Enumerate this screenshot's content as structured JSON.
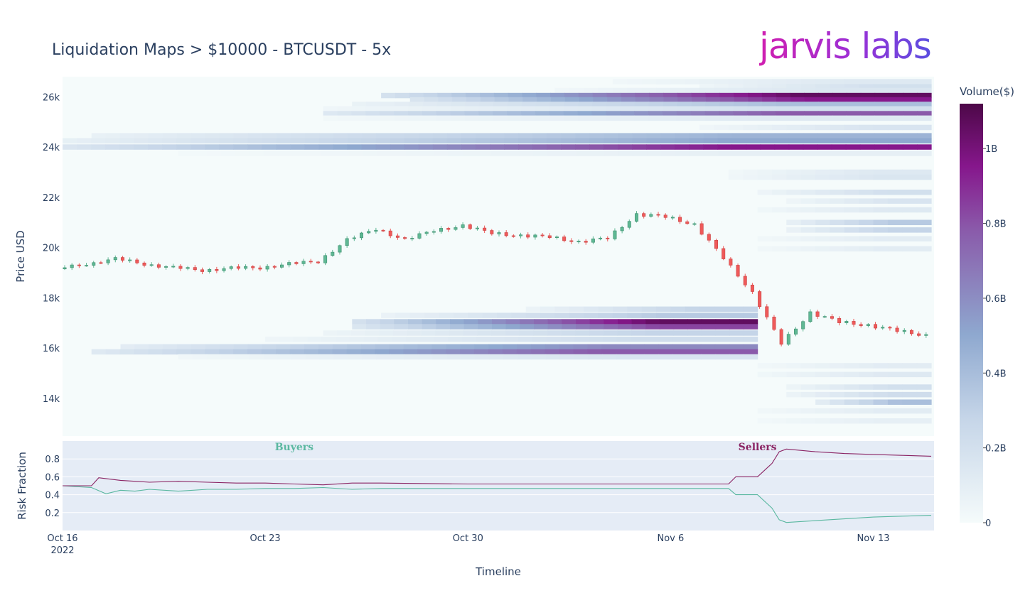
{
  "header": {
    "title": "Liquidation Maps > $10000 - BTCUSDT - 5x",
    "logo": "jarvis labs"
  },
  "colors": {
    "up": "#5fb894",
    "down": "#ef5a5a",
    "buyers": "#5ab8a0",
    "sellers": "#8a2363",
    "heat_low": "#f5fbfb",
    "heat_mid": "#8ea8cf",
    "heat_high": "#86178c",
    "heat_max": "#4d0848",
    "risk_bg": "#e5ecf6",
    "main_bg": "#f5fbfb"
  },
  "chart_data": [
    {
      "type": "heatmap",
      "title": "Liquidation Maps > $10000 - BTCUSDT - 5x",
      "ylabel": "Price USD",
      "ylim": [
        12500,
        26800
      ],
      "yticks": [
        {
          "v": 14000,
          "label": "14k"
        },
        {
          "v": 16000,
          "label": "16k"
        },
        {
          "v": 18000,
          "label": "18k"
        },
        {
          "v": 20000,
          "label": "20k"
        },
        {
          "v": 22000,
          "label": "22k"
        },
        {
          "v": 24000,
          "label": "24k"
        },
        {
          "v": 26000,
          "label": "26k"
        }
      ],
      "xlim": [
        "2022-10-16",
        "2022-11-15"
      ],
      "xticks": [
        {
          "date": "2022-10-16",
          "label": "Oct 16",
          "sub": "2022"
        },
        {
          "date": "2022-10-23",
          "label": "Oct 23",
          "sub": ""
        },
        {
          "date": "2022-10-30",
          "label": "Oct 30",
          "sub": ""
        },
        {
          "date": "2022-11-06",
          "label": "Nov 6",
          "sub": ""
        },
        {
          "date": "2022-11-13",
          "label": "Nov 13",
          "sub": ""
        }
      ],
      "colorbar": {
        "title": "Volume($)",
        "range": [
          0,
          1120000000
        ],
        "ticks": [
          {
            "v": 0,
            "label": "0"
          },
          {
            "v": 200000000,
            "label": "0.2B"
          },
          {
            "v": 400000000,
            "label": "0.4B"
          },
          {
            "v": 600000000,
            "label": "0.6B"
          },
          {
            "v": 800000000,
            "label": "0.8B"
          },
          {
            "v": 1000000000,
            "label": "1B"
          }
        ]
      },
      "liquidation_bands": [
        {
          "price": 26600,
          "start": "2022-11-04",
          "end": "2022-11-15",
          "peak": 0.12
        },
        {
          "price": 26400,
          "start": "2022-11-07",
          "end": "2022-11-15",
          "peak": 0.18
        },
        {
          "price": 26250,
          "start": "2022-11-02",
          "end": "2022-11-15",
          "peak": 0.14
        },
        {
          "price": 26050,
          "start": "2022-10-27",
          "end": "2022-11-15",
          "peak": 0.95
        },
        {
          "price": 25880,
          "start": "2022-10-28",
          "end": "2022-11-15",
          "peak": 0.85
        },
        {
          "price": 25700,
          "start": "2022-10-26",
          "end": "2022-11-15",
          "peak": 0.35
        },
        {
          "price": 25520,
          "start": "2022-10-25",
          "end": "2022-11-15",
          "peak": 0.18
        },
        {
          "price": 25330,
          "start": "2022-10-25",
          "end": "2022-11-15",
          "peak": 0.7
        },
        {
          "price": 25150,
          "start": "2022-10-25",
          "end": "2022-11-15",
          "peak": 0.12
        },
        {
          "price": 24780,
          "start": "2022-11-07",
          "end": "2022-11-15",
          "peak": 0.15
        },
        {
          "price": 24450,
          "start": "2022-10-17",
          "end": "2022-11-15",
          "peak": 0.4
        },
        {
          "price": 24250,
          "start": "2022-10-16",
          "end": "2022-11-15",
          "peak": 0.45
        },
        {
          "price": 24000,
          "start": "2022-10-16",
          "end": "2022-11-15",
          "peak": 0.85
        },
        {
          "price": 23750,
          "start": "2022-10-20",
          "end": "2022-11-15",
          "peak": 0.08
        },
        {
          "price": 23000,
          "start": "2022-11-08",
          "end": "2022-11-15",
          "peak": 0.12
        },
        {
          "price": 22800,
          "start": "2022-11-08",
          "end": "2022-11-15",
          "peak": 0.14
        },
        {
          "price": 22200,
          "start": "2022-11-09",
          "end": "2022-11-15",
          "peak": 0.18
        },
        {
          "price": 21850,
          "start": "2022-11-10",
          "end": "2022-11-15",
          "peak": 0.15
        },
        {
          "price": 21500,
          "start": "2022-11-09",
          "end": "2022-11-15",
          "peak": 0.12
        },
        {
          "price": 21000,
          "start": "2022-11-10",
          "end": "2022-11-15",
          "peak": 0.3
        },
        {
          "price": 20700,
          "start": "2022-11-10",
          "end": "2022-11-15",
          "peak": 0.25
        },
        {
          "price": 20350,
          "start": "2022-11-09",
          "end": "2022-11-15",
          "peak": 0.1
        },
        {
          "price": 19950,
          "start": "2022-11-09",
          "end": "2022-11-15",
          "peak": 0.1
        },
        {
          "price": 17550,
          "start": "2022-11-01",
          "end": "2022-11-09",
          "peak": 0.25
        },
        {
          "price": 17300,
          "start": "2022-10-27",
          "end": "2022-11-09",
          "peak": 0.3
        },
        {
          "price": 17050,
          "start": "2022-10-26",
          "end": "2022-11-09",
          "peak": 0.95
        },
        {
          "price": 16850,
          "start": "2022-10-26",
          "end": "2022-11-09",
          "peak": 0.75
        },
        {
          "price": 16600,
          "start": "2022-10-25",
          "end": "2022-11-09",
          "peak": 0.25
        },
        {
          "price": 16350,
          "start": "2022-10-23",
          "end": "2022-11-09",
          "peak": 0.2
        },
        {
          "price": 16050,
          "start": "2022-10-18",
          "end": "2022-11-09",
          "peak": 0.55
        },
        {
          "price": 15850,
          "start": "2022-10-17",
          "end": "2022-11-09",
          "peak": 0.7
        },
        {
          "price": 15650,
          "start": "2022-10-20",
          "end": "2022-11-09",
          "peak": 0.15
        },
        {
          "price": 15300,
          "start": "2022-11-09",
          "end": "2022-11-15",
          "peak": 0.1
        },
        {
          "price": 14950,
          "start": "2022-11-09",
          "end": "2022-11-15",
          "peak": 0.12
        },
        {
          "price": 14450,
          "start": "2022-11-10",
          "end": "2022-11-15",
          "peak": 0.18
        },
        {
          "price": 14150,
          "start": "2022-11-10",
          "end": "2022-11-15",
          "peak": 0.2
        },
        {
          "price": 13850,
          "start": "2022-11-11",
          "end": "2022-11-15",
          "peak": 0.35
        },
        {
          "price": 13500,
          "start": "2022-11-09",
          "end": "2022-11-15",
          "peak": 0.1
        },
        {
          "price": 13100,
          "start": "2022-11-09",
          "end": "2022-11-15",
          "peak": 0.08
        }
      ],
      "candles_daily_close": [
        {
          "date": "2022-10-16",
          "close": 19150
        },
        {
          "date": "2022-10-17",
          "close": 19350
        },
        {
          "date": "2022-10-18",
          "close": 19550
        },
        {
          "date": "2022-10-19",
          "close": 19350
        },
        {
          "date": "2022-10-20",
          "close": 19200
        },
        {
          "date": "2022-10-21",
          "close": 19100
        },
        {
          "date": "2022-10-22",
          "close": 19180
        },
        {
          "date": "2022-10-23",
          "close": 19200
        },
        {
          "date": "2022-10-24",
          "close": 19350
        },
        {
          "date": "2022-10-25",
          "close": 19450
        },
        {
          "date": "2022-10-26",
          "close": 20300
        },
        {
          "date": "2022-10-27",
          "close": 20750
        },
        {
          "date": "2022-10-28",
          "close": 20300
        },
        {
          "date": "2022-10-29",
          "close": 20700
        },
        {
          "date": "2022-10-30",
          "close": 20850
        },
        {
          "date": "2022-10-31",
          "close": 20600
        },
        {
          "date": "2022-11-01",
          "close": 20450
        },
        {
          "date": "2022-11-02",
          "close": 20450
        },
        {
          "date": "2022-11-03",
          "close": 20200
        },
        {
          "date": "2022-11-04",
          "close": 20400
        },
        {
          "date": "2022-11-05",
          "close": 21300
        },
        {
          "date": "2022-11-06",
          "close": 21250
        },
        {
          "date": "2022-11-07",
          "close": 20900
        },
        {
          "date": "2022-11-08",
          "close": 19600
        },
        {
          "date": "2022-11-09",
          "close": 18200
        },
        {
          "date": "2022-11-10",
          "close": 16200
        },
        {
          "date": "2022-11-11",
          "close": 17400
        },
        {
          "date": "2022-11-12",
          "close": 17050
        },
        {
          "date": "2022-11-13",
          "close": 16900
        },
        {
          "date": "2022-11-14",
          "close": 16700
        },
        {
          "date": "2022-11-15",
          "close": 16500
        }
      ]
    },
    {
      "type": "line",
      "ylabel": "Risk Fraction",
      "xlabel": "Timeline",
      "ylim": [
        0.0,
        1.0
      ],
      "yticks": [
        {
          "v": 0.2,
          "label": "0.2"
        },
        {
          "v": 0.4,
          "label": "0.4"
        },
        {
          "v": 0.6,
          "label": "0.6"
        },
        {
          "v": 0.8,
          "label": "0.8"
        }
      ],
      "annotations": [
        {
          "text": "Buyers",
          "date": "2022-10-24",
          "y": 0.92,
          "color": "#5ab8a0"
        },
        {
          "text": "Sellers",
          "date": "2022-11-09",
          "y": 0.92,
          "color": "#8a2363"
        }
      ],
      "series": [
        {
          "name": "Buyers",
          "color": "#5ab8a0",
          "x": [
            "2022-10-16",
            "2022-10-17",
            "2022-10-17 12:00",
            "2022-10-18",
            "2022-10-18 12:00",
            "2022-10-19",
            "2022-10-20",
            "2022-10-21",
            "2022-10-22",
            "2022-10-23",
            "2022-10-24",
            "2022-10-25",
            "2022-10-26",
            "2022-10-27",
            "2022-10-30",
            "2022-11-02",
            "2022-11-05",
            "2022-11-08",
            "2022-11-08 06:00",
            "2022-11-09",
            "2022-11-09 12:00",
            "2022-11-09 18:00",
            "2022-11-10",
            "2022-11-11",
            "2022-11-12",
            "2022-11-13",
            "2022-11-14",
            "2022-11-15"
          ],
          "y": [
            0.5,
            0.48,
            0.41,
            0.45,
            0.44,
            0.46,
            0.44,
            0.46,
            0.46,
            0.47,
            0.47,
            0.48,
            0.46,
            0.47,
            0.47,
            0.47,
            0.47,
            0.47,
            0.4,
            0.4,
            0.25,
            0.12,
            0.09,
            0.11,
            0.13,
            0.15,
            0.16,
            0.17
          ]
        },
        {
          "name": "Sellers",
          "color": "#8a2363",
          "x": [
            "2022-10-16",
            "2022-10-17",
            "2022-10-17 06:00",
            "2022-10-18",
            "2022-10-18 12:00",
            "2022-10-19",
            "2022-10-20",
            "2022-10-21",
            "2022-10-22",
            "2022-10-23",
            "2022-10-24",
            "2022-10-25",
            "2022-10-26",
            "2022-10-27",
            "2022-10-30",
            "2022-11-02",
            "2022-11-05",
            "2022-11-08",
            "2022-11-08 06:00",
            "2022-11-09",
            "2022-11-09 12:00",
            "2022-11-09 18:00",
            "2022-11-10",
            "2022-11-11",
            "2022-11-12",
            "2022-11-13",
            "2022-11-14",
            "2022-11-15"
          ],
          "y": [
            0.5,
            0.5,
            0.59,
            0.56,
            0.55,
            0.54,
            0.55,
            0.54,
            0.53,
            0.53,
            0.52,
            0.51,
            0.53,
            0.53,
            0.52,
            0.52,
            0.52,
            0.52,
            0.6,
            0.6,
            0.75,
            0.88,
            0.91,
            0.88,
            0.86,
            0.85,
            0.84,
            0.83
          ]
        }
      ]
    }
  ]
}
